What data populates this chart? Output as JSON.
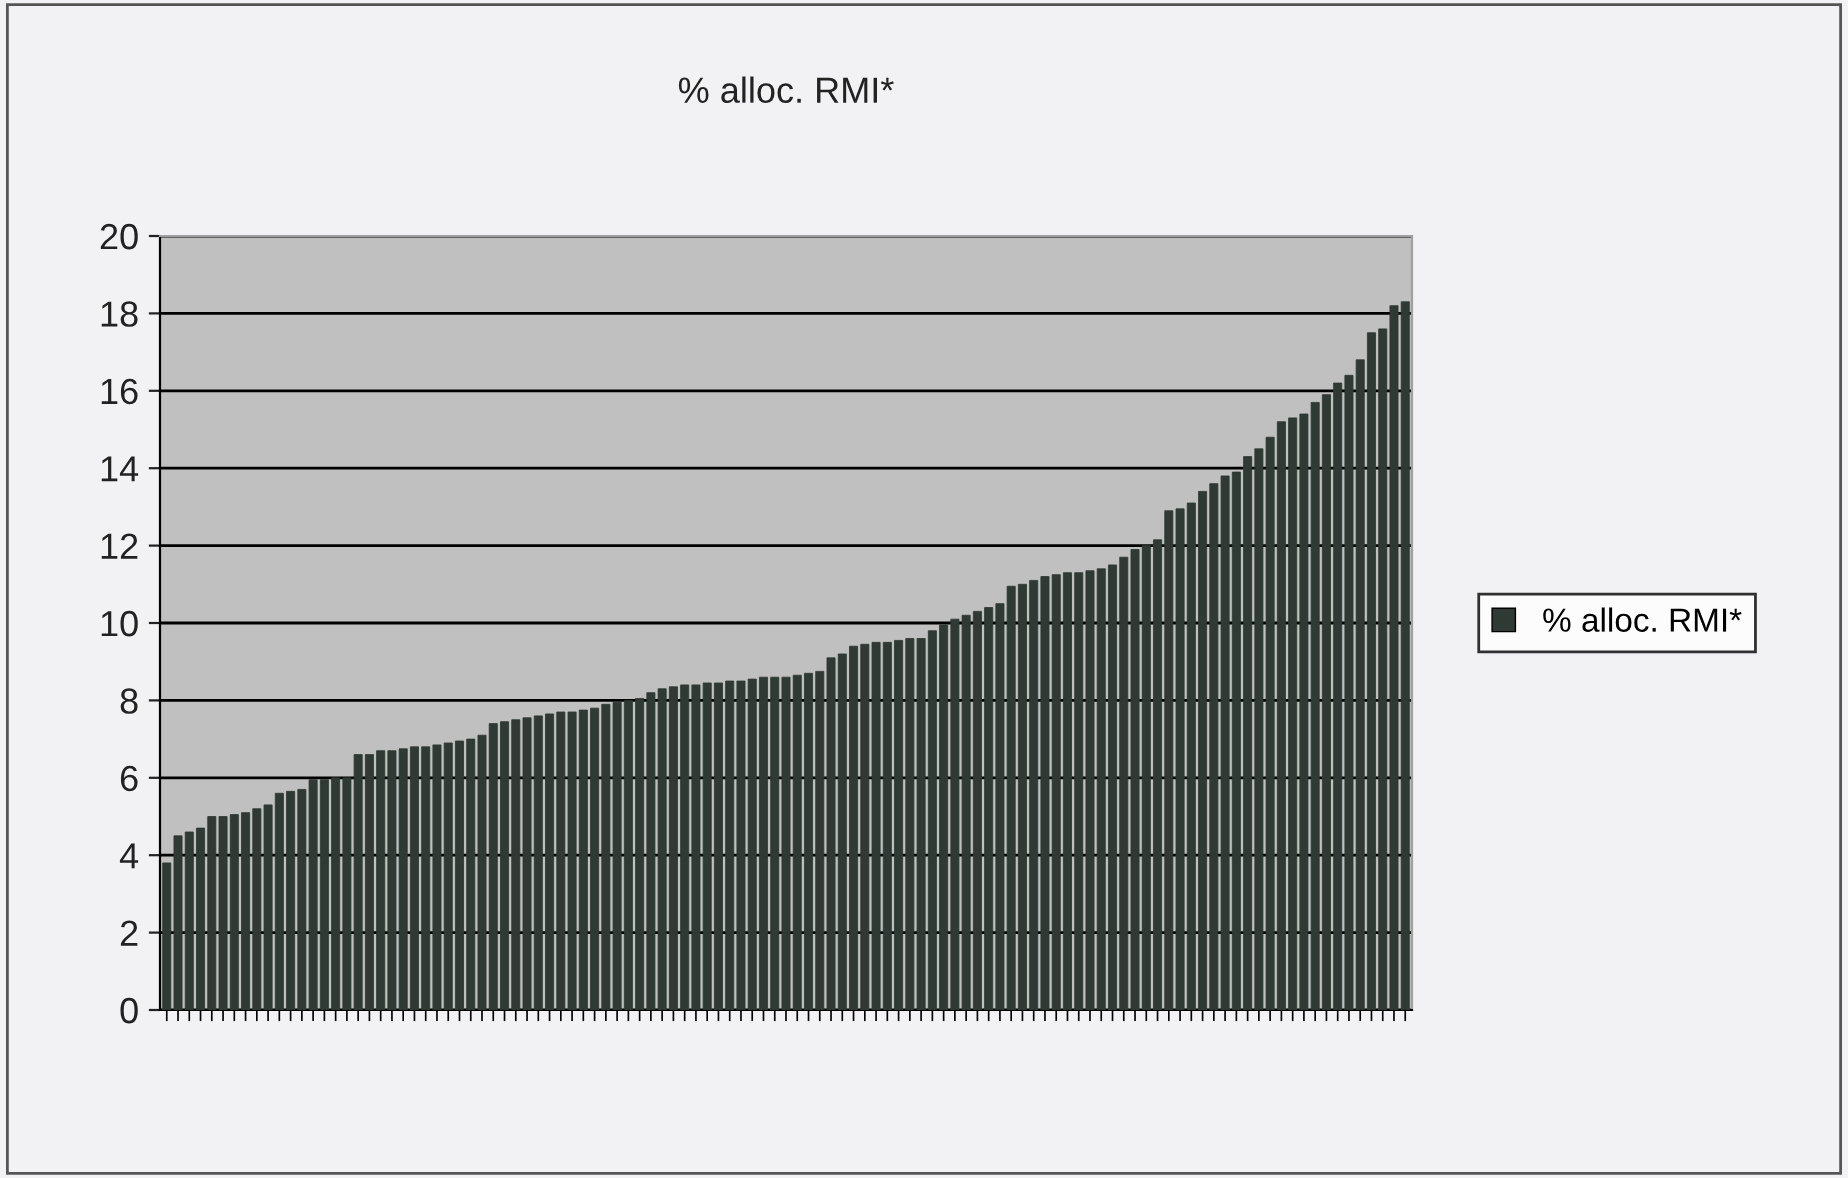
{
  "chart_data": {
    "type": "bar",
    "title": "% alloc. RMI*",
    "categories": [
      null,
      null,
      null,
      null,
      null,
      null,
      null,
      null,
      null,
      null,
      null,
      null,
      null,
      null,
      null,
      null,
      null,
      null,
      null,
      null,
      null,
      null,
      null,
      null,
      null,
      null,
      null,
      null,
      null,
      null,
      null,
      null,
      null,
      null,
      null,
      null,
      null,
      null,
      null,
      null,
      null,
      null,
      null,
      null,
      null,
      null,
      null,
      null,
      null,
      null,
      null,
      null,
      null,
      null,
      null,
      null,
      null,
      null,
      null,
      null,
      null,
      null,
      null,
      null,
      null,
      null,
      null,
      null,
      null,
      null,
      null,
      null,
      null,
      null,
      null,
      null,
      null,
      null,
      null,
      null,
      null,
      null,
      null,
      null,
      null,
      null,
      null,
      null,
      null,
      null,
      null,
      null,
      null,
      null,
      null,
      null,
      null,
      null,
      null,
      null,
      null,
      null,
      null,
      null,
      null,
      null,
      null,
      null,
      null,
      null,
      null
    ],
    "series": [
      {
        "name": "% alloc. RMI*",
        "color": "#2e3a33",
        "values": [
          3.8,
          4.5,
          4.6,
          4.7,
          5.0,
          5.0,
          5.05,
          5.1,
          5.2,
          5.3,
          5.6,
          5.65,
          5.7,
          5.95,
          5.95,
          6.0,
          6.0,
          6.6,
          6.6,
          6.7,
          6.7,
          6.75,
          6.8,
          6.8,
          6.85,
          6.9,
          6.95,
          7.0,
          7.1,
          7.4,
          7.45,
          7.5,
          7.55,
          7.6,
          7.65,
          7.7,
          7.7,
          7.75,
          7.8,
          7.9,
          7.95,
          8.0,
          8.05,
          8.2,
          8.3,
          8.35,
          8.4,
          8.4,
          8.45,
          8.45,
          8.5,
          8.5,
          8.55,
          8.6,
          8.6,
          8.6,
          8.65,
          8.7,
          8.75,
          9.1,
          9.2,
          9.4,
          9.45,
          9.5,
          9.5,
          9.55,
          9.6,
          9.6,
          9.8,
          9.95,
          10.1,
          10.2,
          10.3,
          10.4,
          10.5,
          10.95,
          11.0,
          11.1,
          11.2,
          11.25,
          11.3,
          11.3,
          11.35,
          11.4,
          11.5,
          11.7,
          11.9,
          12.0,
          12.15,
          12.9,
          12.95,
          13.1,
          13.4,
          13.6,
          13.8,
          13.9,
          14.3,
          14.5,
          14.8,
          15.2,
          15.3,
          15.4,
          15.7,
          15.9,
          16.2,
          16.4,
          16.8,
          17.5,
          17.6,
          18.2,
          18.3
        ]
      }
    ],
    "ylim": [
      0,
      20
    ],
    "yticks": [
      0,
      2,
      4,
      6,
      8,
      10,
      12,
      14,
      16,
      18,
      20
    ],
    "grid": "y",
    "legend": "right"
  }
}
